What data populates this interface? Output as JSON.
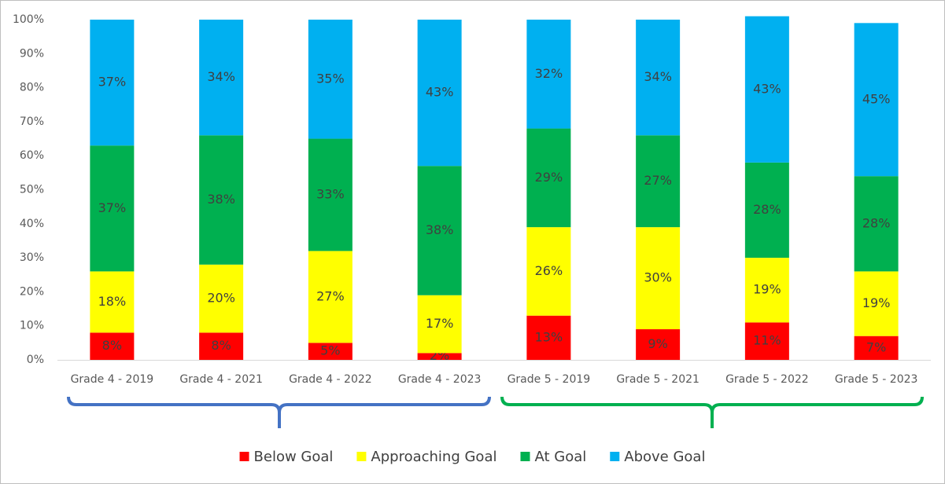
{
  "chart_data": {
    "type": "stacked_bar",
    "categories": [
      "Grade 4 - 2019",
      "Grade 4 - 2021",
      "Grade 4 - 2022",
      "Grade 4 - 2023",
      "Grade 5 - 2019",
      "Grade 5 - 2021",
      "Grade 5 - 2022",
      "Grade 5 - 2023"
    ],
    "series": [
      {
        "name": "Below Goal",
        "color": "#ff0000",
        "values": [
          8,
          8,
          5,
          2,
          13,
          9,
          11,
          7
        ],
        "value_labels": [
          "8%",
          "8%",
          "5%",
          "2%",
          "13%",
          "9%",
          "11%",
          "7%"
        ]
      },
      {
        "name": "Approaching Goal",
        "color": "#ffff00",
        "values": [
          18,
          20,
          27,
          17,
          26,
          30,
          19,
          19
        ],
        "value_labels": [
          "18%",
          "20%",
          "27%",
          "17%",
          "26%",
          "30%",
          "19%",
          "19%"
        ]
      },
      {
        "name": "At Goal",
        "color": "#00b050",
        "values": [
          37,
          38,
          33,
          38,
          29,
          27,
          28,
          28
        ],
        "value_labels": [
          "37%",
          "38%",
          "33%",
          "38%",
          "29%",
          "27%",
          "28%",
          "28%"
        ]
      },
      {
        "name": "Above Goal",
        "color": "#00b0f0",
        "values": [
          37,
          34,
          35,
          43,
          32,
          34,
          43,
          45
        ],
        "value_labels": [
          "37%",
          "34%",
          "35%",
          "43%",
          "32%",
          "34%",
          "43%",
          "45%"
        ]
      }
    ],
    "ylim": [
      0,
      100
    ],
    "yticks": [
      {
        "value": 0,
        "label": "0%"
      },
      {
        "value": 10,
        "label": "10%"
      },
      {
        "value": 20,
        "label": "20%"
      },
      {
        "value": 30,
        "label": "30%"
      },
      {
        "value": 40,
        "label": "40%"
      },
      {
        "value": 50,
        "label": "50%"
      },
      {
        "value": 60,
        "label": "60%"
      },
      {
        "value": 70,
        "label": "70%"
      },
      {
        "value": 80,
        "label": "80%"
      },
      {
        "value": 90,
        "label": "90%"
      },
      {
        "value": 100,
        "label": "100%"
      }
    ],
    "grid": false,
    "legend": "bottom"
  }
}
